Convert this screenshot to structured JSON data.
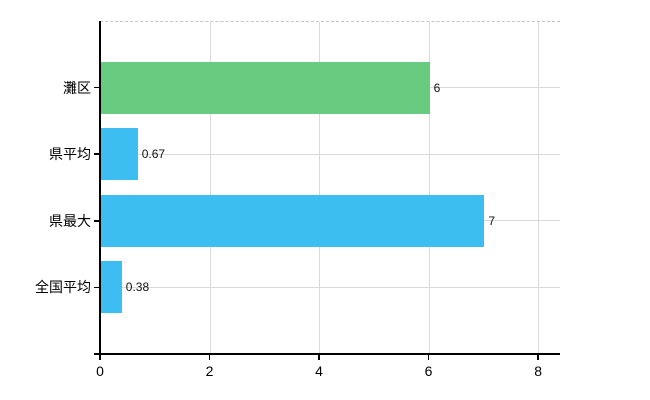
{
  "chart_data": {
    "type": "bar",
    "orientation": "horizontal",
    "categories": [
      "灘区",
      "県平均",
      "県最大",
      "全国平均"
    ],
    "values": [
      6,
      0.67,
      7,
      0.38
    ],
    "value_labels": [
      "6",
      "0.67",
      "7",
      "0.38"
    ],
    "bar_colors": [
      "#69cb80",
      "#3cbef1",
      "#3cbef1",
      "#3cbef1"
    ],
    "x_ticks": [
      "0",
      "2",
      "4",
      "6",
      "8"
    ],
    "x_tick_values": [
      0,
      2,
      4,
      6,
      8
    ],
    "xlim": [
      0,
      8.4
    ],
    "grid": true,
    "legend": "none",
    "colors": {
      "axis": "#000000",
      "gridline": "#d9d9d9",
      "top_border": "#c6c6c6",
      "background": "#ffffff",
      "text": "#000000"
    }
  }
}
